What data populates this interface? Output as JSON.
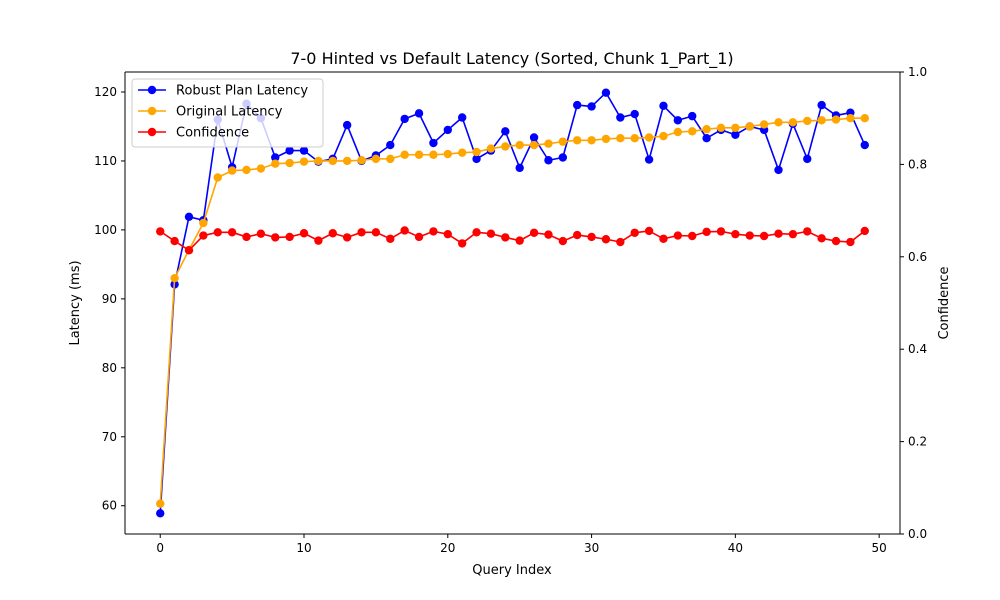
{
  "chart_data": {
    "type": "line",
    "title": "7-0 Hinted vs Default Latency (Sorted, Chunk 1_Part_1)",
    "xlabel": "Query Index",
    "ylabel": "Latency (ms)",
    "y2label": "Confidence",
    "xlim": [
      -2.45,
      51.45
    ],
    "ylim": [
      55.9,
      122.9
    ],
    "y2lim": [
      0.0,
      1.0
    ],
    "x_ticks": [
      0,
      10,
      20,
      30,
      40,
      50
    ],
    "y_ticks": [
      60,
      70,
      80,
      90,
      100,
      110,
      120
    ],
    "y2_ticks": [
      0.0,
      0.2,
      0.4,
      0.6,
      0.8,
      1.0
    ],
    "x_tick_labels": [
      "0",
      "10",
      "20",
      "30",
      "40",
      "50"
    ],
    "y_tick_labels": [
      "60",
      "70",
      "80",
      "90",
      "100",
      "110",
      "120"
    ],
    "y2_tick_labels": [
      "0.0",
      "0.2",
      "0.4",
      "0.6",
      "0.8",
      "1.0"
    ],
    "legend_position": "top-left",
    "grid": false,
    "x": [
      0,
      1,
      2,
      3,
      4,
      5,
      6,
      7,
      8,
      9,
      10,
      11,
      12,
      13,
      14,
      15,
      16,
      17,
      18,
      19,
      20,
      21,
      22,
      23,
      24,
      25,
      26,
      27,
      28,
      29,
      30,
      31,
      32,
      33,
      34,
      35,
      36,
      37,
      38,
      39,
      40,
      41,
      42,
      43,
      44,
      45,
      46,
      47,
      48,
      49
    ],
    "series": [
      {
        "name": "Robust Plan Latency",
        "color": "#0000ff",
        "axis": "left",
        "values": [
          58.9,
          92.1,
          101.9,
          101.4,
          116.0,
          109.1,
          118.3,
          116.2,
          110.5,
          111.5,
          111.5,
          109.9,
          110.3,
          115.2,
          110.0,
          110.8,
          112.3,
          116.1,
          116.9,
          112.6,
          114.5,
          116.3,
          110.3,
          111.5,
          114.3,
          109.0,
          113.4,
          110.1,
          110.5,
          118.1,
          117.9,
          119.9,
          116.3,
          116.8,
          110.2,
          118.0,
          115.9,
          116.5,
          113.3,
          114.5,
          113.8,
          115.0,
          114.5,
          108.7,
          115.4,
          110.3,
          118.1,
          116.6,
          117.0,
          112.3
        ]
      },
      {
        "name": "Original Latency",
        "color": "#ffa500",
        "axis": "left",
        "values": [
          60.3,
          93.0,
          97.1,
          101.0,
          107.6,
          108.6,
          108.7,
          108.9,
          109.6,
          109.7,
          109.9,
          110.0,
          110.0,
          110.0,
          110.1,
          110.3,
          110.3,
          110.9,
          110.9,
          110.9,
          111.0,
          111.2,
          111.3,
          111.8,
          112.1,
          112.3,
          112.3,
          112.5,
          112.8,
          113.0,
          113.0,
          113.2,
          113.3,
          113.3,
          113.4,
          113.6,
          114.2,
          114.3,
          114.6,
          114.8,
          114.8,
          115.0,
          115.3,
          115.6,
          115.6,
          115.8,
          115.9,
          116.0,
          116.2,
          116.2
        ]
      },
      {
        "name": "Confidence",
        "color": "#ff0000",
        "axis": "right",
        "values": [
          0.655,
          0.634,
          0.614,
          0.646,
          0.653,
          0.653,
          0.643,
          0.65,
          0.642,
          0.643,
          0.651,
          0.635,
          0.651,
          0.642,
          0.653,
          0.653,
          0.639,
          0.657,
          0.643,
          0.655,
          0.649,
          0.629,
          0.653,
          0.65,
          0.642,
          0.635,
          0.652,
          0.648,
          0.634,
          0.647,
          0.643,
          0.638,
          0.632,
          0.652,
          0.656,
          0.639,
          0.646,
          0.645,
          0.654,
          0.655,
          0.649,
          0.646,
          0.645,
          0.65,
          0.649,
          0.655,
          0.64,
          0.634,
          0.632,
          0.656
        ]
      }
    ]
  }
}
